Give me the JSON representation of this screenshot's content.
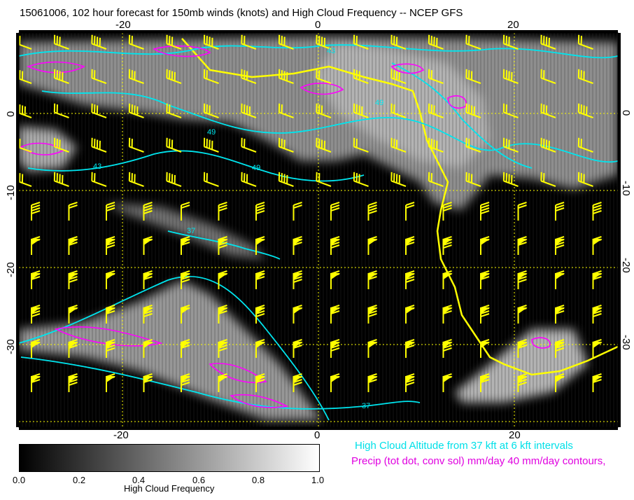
{
  "title": "15061006, 102 hour forecast for 150mb winds (knots) and High Cloud Frequency -- NCEP GFS",
  "map": {
    "lon_ticks": [
      "-20",
      "0",
      "20"
    ],
    "lat_ticks": [
      "0",
      "-10",
      "-20",
      "-30"
    ],
    "contour_labels": [
      "49",
      "43",
      "49",
      "37",
      "37",
      "43",
      "49"
    ]
  },
  "legend": {
    "cyan_text": "High Cloud Altitude from 37 kft at 6 kft intervals",
    "magenta_text": "Precip (tot dot, conv sol) mm/day 40 mm/day contours,",
    "colorbar_title": "High Cloud Frequency",
    "colorbar_ticks": [
      "0.0",
      "0.2",
      "0.4",
      "0.6",
      "0.8",
      "1.0"
    ]
  },
  "colors": {
    "background": "#000000",
    "wind_barbs": "#ffff00",
    "cloud_altitude_contours": "#00e5ee",
    "precip_contours": "#ff00ff",
    "grid": "#ffff00"
  }
}
